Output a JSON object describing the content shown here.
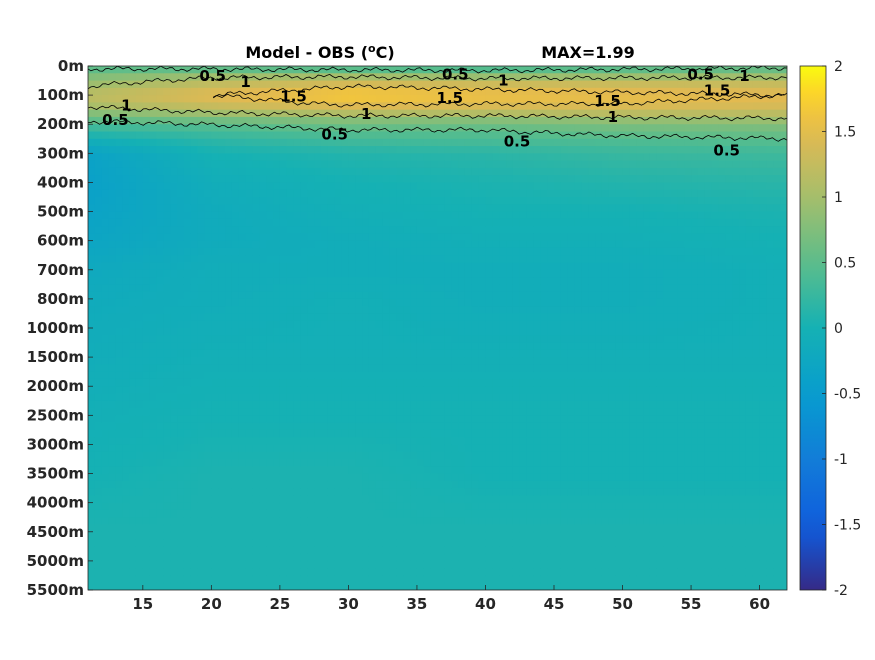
{
  "chart_data": {
    "type": "heatmap",
    "title": "Model - OBS (°C)",
    "title_parts": {
      "text": "Model - OBS (",
      "superscript": "o",
      "unit": "C)"
    },
    "max_annotation": "MAX=1.99",
    "x_ticks": [
      15,
      20,
      25,
      30,
      35,
      40,
      45,
      50,
      55,
      60
    ],
    "x_range": [
      11,
      62
    ],
    "y_ticks": [
      "0m",
      "100m",
      "200m",
      "300m",
      "400m",
      "500m",
      "600m",
      "700m",
      "800m",
      "1000m",
      "1500m",
      "2000m",
      "2500m",
      "3000m",
      "3500m",
      "4000m",
      "4500m",
      "5000m",
      "5500m"
    ],
    "y_scale": "depth levels, uniform spacing per labelled depth",
    "colorbar": {
      "range": [
        -2,
        2
      ],
      "ticks": [
        "2",
        "1.5",
        "1",
        "0.5",
        "0",
        "-0.5",
        "-1",
        "-1.5",
        "-2"
      ],
      "colormap": "parula"
    },
    "contour_levels": [
      0.5,
      1,
      1.5
    ],
    "contour_labels": [
      {
        "text": "0.5",
        "x": 20.1,
        "depth_index": 0.35
      },
      {
        "text": "1",
        "x": 22.5,
        "depth_index": 0.55
      },
      {
        "text": "1.5",
        "x": 26.0,
        "depth_index": 1.05
      },
      {
        "text": "1",
        "x": 13.8,
        "depth_index": 1.35
      },
      {
        "text": "0.5",
        "x": 13.0,
        "depth_index": 1.85
      },
      {
        "text": "1",
        "x": 31.3,
        "depth_index": 1.65
      },
      {
        "text": "0.5",
        "x": 29.0,
        "depth_index": 2.35
      },
      {
        "text": "0.5",
        "x": 37.8,
        "depth_index": 0.3
      },
      {
        "text": "1",
        "x": 41.3,
        "depth_index": 0.5
      },
      {
        "text": "1.5",
        "x": 37.4,
        "depth_index": 1.1
      },
      {
        "text": "0.5",
        "x": 42.3,
        "depth_index": 2.6
      },
      {
        "text": "1.5",
        "x": 48.9,
        "depth_index": 1.2
      },
      {
        "text": "1",
        "x": 49.3,
        "depth_index": 1.75
      },
      {
        "text": "0.5",
        "x": 55.7,
        "depth_index": 0.3
      },
      {
        "text": "1",
        "x": 58.9,
        "depth_index": 0.35
      },
      {
        "text": "1.5",
        "x": 56.9,
        "depth_index": 0.85
      },
      {
        "text": "0.5",
        "x": 57.6,
        "depth_index": 2.9
      }
    ],
    "profile": {
      "depth_index": [
        0,
        0.3,
        0.7,
        1.0,
        1.3,
        1.6,
        1.9,
        2.2,
        2.6,
        3.0,
        4.0,
        5.0,
        6.0,
        7.0,
        8.0,
        10.0,
        12.0,
        14.0,
        16.0,
        18.0
      ],
      "value_by_x": [
        {
          "x": 11,
          "values": [
            0.4,
            0.7,
            1.0,
            1.2,
            1.1,
            0.8,
            0.5,
            0.2,
            -0.1,
            -0.35,
            -0.4,
            -0.35,
            -0.3,
            -0.2,
            -0.15,
            -0.1,
            -0.05,
            0.0,
            0.05,
            0.05
          ]
        },
        {
          "x": 20,
          "values": [
            0.3,
            0.9,
            1.3,
            1.5,
            1.35,
            1.0,
            0.6,
            0.35,
            0.15,
            0.0,
            -0.1,
            -0.15,
            -0.15,
            -0.1,
            -0.1,
            -0.05,
            0.0,
            0.05,
            0.05,
            0.05
          ]
        },
        {
          "x": 30,
          "values": [
            0.2,
            0.9,
            1.5,
            1.7,
            1.55,
            1.15,
            0.75,
            0.5,
            0.3,
            0.1,
            0.0,
            -0.05,
            -0.1,
            -0.1,
            -0.05,
            -0.05,
            0.0,
            0.05,
            0.05,
            0.05
          ]
        },
        {
          "x": 40,
          "values": [
            0.2,
            0.8,
            1.45,
            1.6,
            1.5,
            1.15,
            0.75,
            0.5,
            0.35,
            0.15,
            0.05,
            0.0,
            -0.05,
            -0.1,
            -0.1,
            -0.05,
            0.0,
            0.0,
            0.05,
            0.05
          ]
        },
        {
          "x": 50,
          "values": [
            0.3,
            0.85,
            1.4,
            1.55,
            1.5,
            1.2,
            0.85,
            0.6,
            0.4,
            0.25,
            0.1,
            0.0,
            -0.05,
            -0.1,
            -0.1,
            -0.05,
            0.0,
            0.0,
            0.05,
            0.05
          ]
        },
        {
          "x": 62,
          "values": [
            0.4,
            0.9,
            1.35,
            1.5,
            1.45,
            1.2,
            0.9,
            0.65,
            0.45,
            0.3,
            0.15,
            0.05,
            0.0,
            -0.05,
            -0.05,
            -0.05,
            0.0,
            0.0,
            0.05,
            0.05
          ]
        }
      ]
    }
  }
}
